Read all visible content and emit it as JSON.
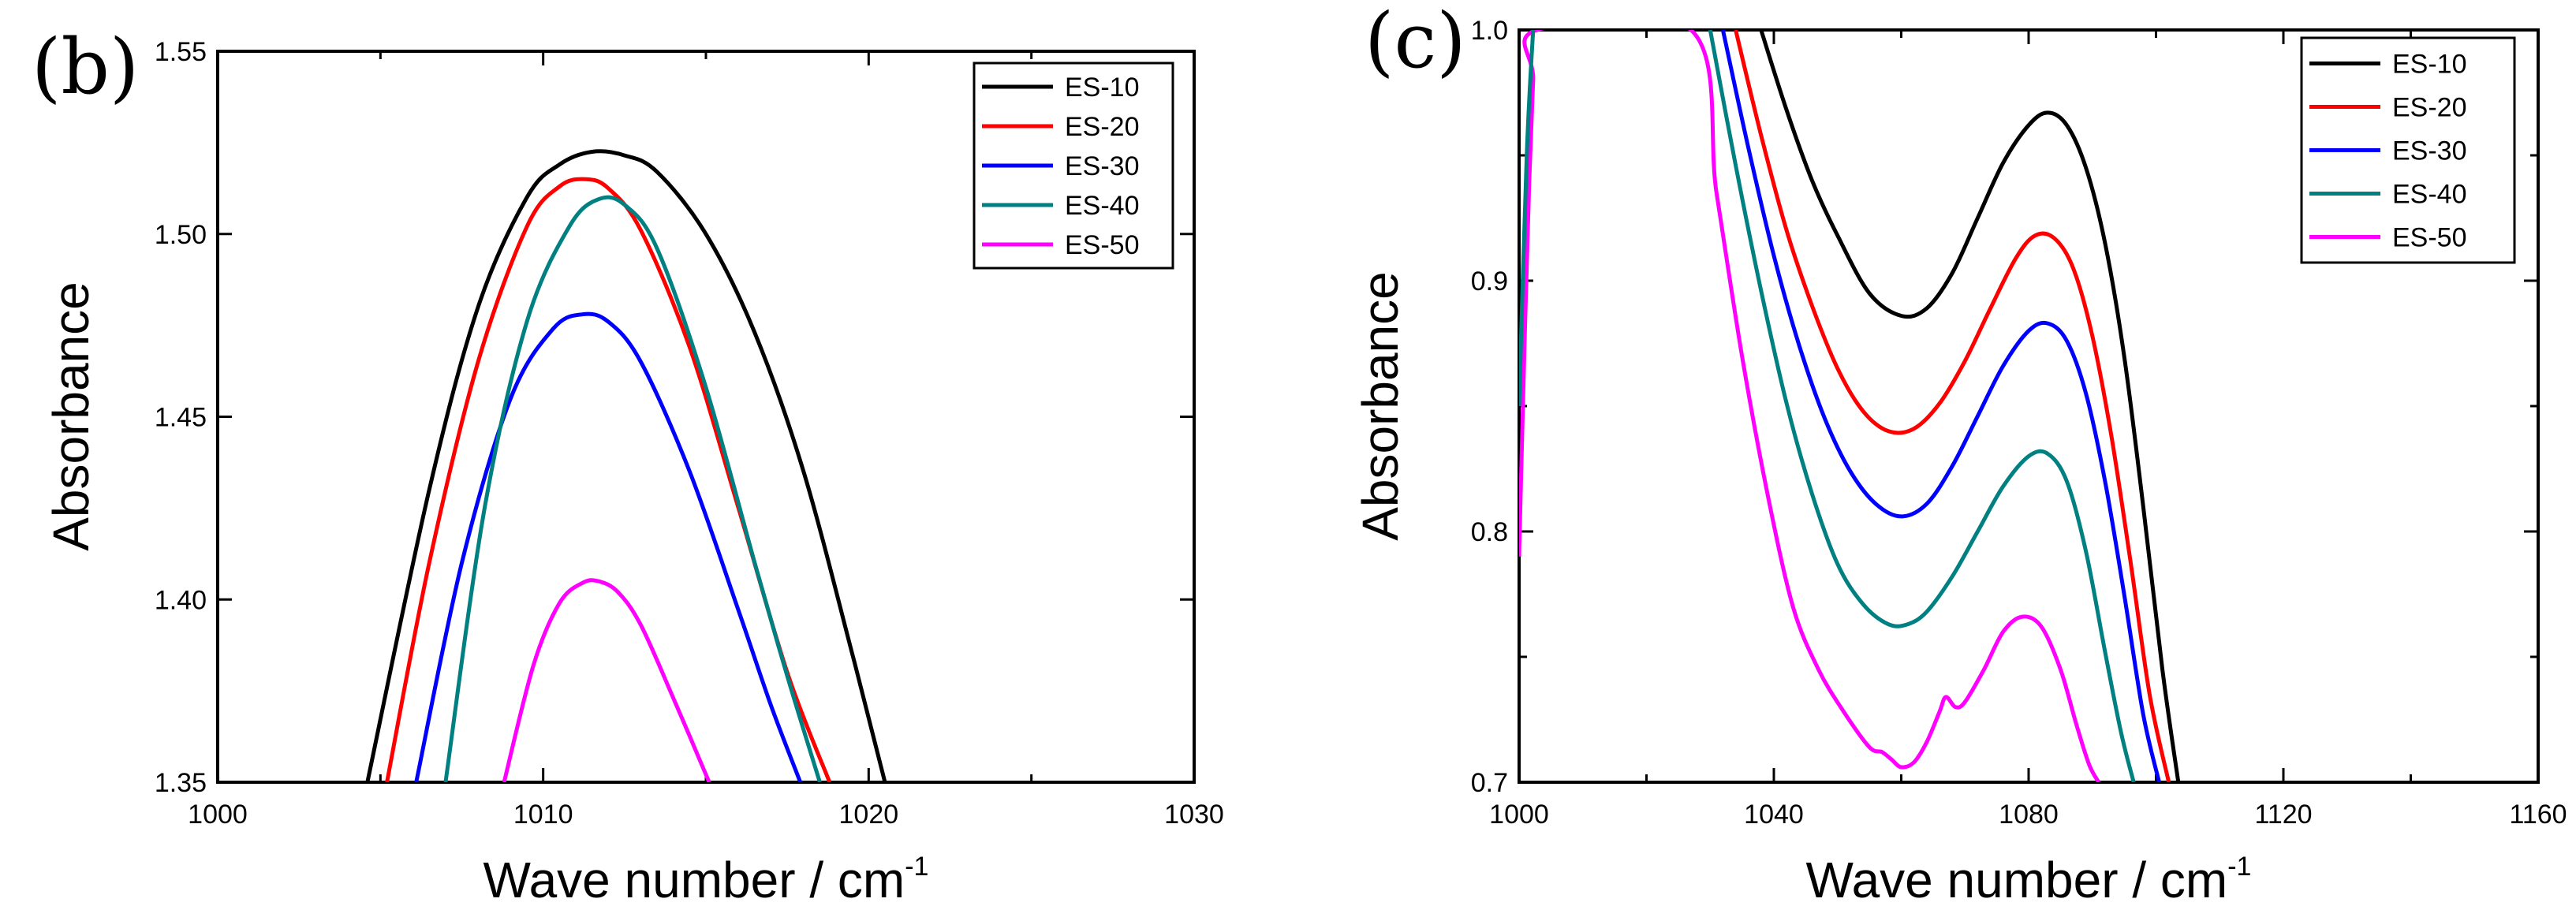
{
  "chart_data": [
    {
      "type": "line",
      "panel": "(b)",
      "xlabel": "Wave number / cm",
      "xlabel_sup": "-1",
      "ylabel": "Absorbance",
      "xlim": [
        1000,
        1030
      ],
      "ylim": [
        1.35,
        1.55
      ],
      "xticks": [
        1000,
        1010,
        1020,
        1030
      ],
      "xtick_labels": [
        "1000",
        "1010",
        "1020",
        "1030"
      ],
      "yticks": [
        1.35,
        1.4,
        1.45,
        1.5,
        1.55
      ],
      "ytick_labels": [
        "1.35",
        "1.40",
        "1.45",
        "1.50",
        "1.55"
      ],
      "legend_position": "top-right",
      "series": [
        {
          "name": "ES-10",
          "color": "#000000",
          "x": [
            1004.6,
            1006.5,
            1008.0,
            1009.5,
            1010.5,
            1011.5,
            1012.5,
            1013.5,
            1015.0,
            1016.5,
            1018.0,
            1019.5,
            1020.5
          ],
          "y": [
            1.35,
            1.43,
            1.48,
            1.51,
            1.519,
            1.5225,
            1.5215,
            1.517,
            1.5,
            1.473,
            1.435,
            1.385,
            1.35
          ]
        },
        {
          "name": "ES-20",
          "color": "#ff0000",
          "x": [
            1005.2,
            1006.5,
            1008.0,
            1009.5,
            1010.5,
            1011.3,
            1012.0,
            1013.0,
            1014.5,
            1016.0,
            1017.5,
            1018.8
          ],
          "y": [
            1.35,
            1.41,
            1.465,
            1.502,
            1.513,
            1.515,
            1.5125,
            1.501,
            1.469,
            1.425,
            1.38,
            1.35
          ]
        },
        {
          "name": "ES-30",
          "color": "#0000ff",
          "x": [
            1006.1,
            1007.5,
            1009.0,
            1010.3,
            1011.2,
            1012.0,
            1013.0,
            1014.5,
            1016.0,
            1017.0,
            1017.9
          ],
          "y": [
            1.35,
            1.41,
            1.455,
            1.474,
            1.478,
            1.476,
            1.465,
            1.435,
            1.397,
            1.371,
            1.35
          ]
        },
        {
          "name": "ES-40",
          "color": "#008080",
          "x": [
            1007.0,
            1008.2,
            1009.5,
            1010.8,
            1011.7,
            1012.5,
            1013.5,
            1015.0,
            1016.5,
            1017.5,
            1018.5
          ],
          "y": [
            1.35,
            1.425,
            1.476,
            1.502,
            1.5095,
            1.508,
            1.496,
            1.458,
            1.41,
            1.379,
            1.35
          ]
        },
        {
          "name": "ES-50",
          "color": "#ff00ff",
          "x": [
            1008.8,
            1009.7,
            1010.5,
            1011.2,
            1011.7,
            1012.3,
            1013.0,
            1014.0,
            1015.1
          ],
          "y": [
            1.35,
            1.382,
            1.399,
            1.4045,
            1.405,
            1.402,
            1.393,
            1.373,
            1.35
          ]
        }
      ]
    },
    {
      "type": "line",
      "panel": "(c)",
      "xlabel": "Wave number / cm",
      "xlabel_sup": "-1",
      "ylabel": "Absorbance",
      "xlim": [
        1000,
        1160
      ],
      "ylim": [
        0.7,
        1.0
      ],
      "xticks": [
        1000,
        1040,
        1080,
        1120,
        1160
      ],
      "xtick_labels": [
        "1000",
        "1040",
        "1080",
        "1120",
        "1160"
      ],
      "yticks": [
        0.7,
        0.8,
        0.9,
        1.0
      ],
      "ytick_labels": [
        "0.7",
        "0.8",
        "0.9",
        "1.0"
      ],
      "legend_position": "top-right",
      "series": [
        {
          "name": "ES-10",
          "color": "#000000",
          "x": [
            1038,
            1042,
            1046,
            1050,
            1055,
            1060,
            1064,
            1068,
            1072,
            1076,
            1080,
            1083,
            1086,
            1089,
            1092,
            1095,
            1098,
            1101,
            1103.5
          ],
          "y": [
            1.0,
            0.968,
            0.94,
            0.918,
            0.895,
            0.886,
            0.889,
            0.903,
            0.925,
            0.947,
            0.962,
            0.967,
            0.962,
            0.945,
            0.915,
            0.87,
            0.81,
            0.745,
            0.7
          ]
        },
        {
          "name": "ES-20",
          "color": "#ff0000",
          "x": [
            1034,
            1038,
            1042,
            1046,
            1050,
            1054,
            1058,
            1062,
            1066,
            1070,
            1074,
            1078,
            1081,
            1084,
            1087,
            1090,
            1093,
            1096,
            1099,
            1102
          ],
          "y": [
            1.0,
            0.958,
            0.92,
            0.89,
            0.865,
            0.848,
            0.84,
            0.841,
            0.851,
            0.868,
            0.889,
            0.909,
            0.918,
            0.917,
            0.905,
            0.878,
            0.838,
            0.788,
            0.735,
            0.7
          ]
        },
        {
          "name": "ES-30",
          "color": "#0000ff",
          "x": [
            1032,
            1036,
            1040,
            1044,
            1048,
            1052,
            1056,
            1060,
            1064,
            1068,
            1072,
            1076,
            1080,
            1083,
            1086,
            1089,
            1092,
            1095,
            1098,
            1100.5
          ],
          "y": [
            1.0,
            0.953,
            0.91,
            0.874,
            0.845,
            0.824,
            0.811,
            0.806,
            0.811,
            0.826,
            0.846,
            0.866,
            0.88,
            0.883,
            0.876,
            0.855,
            0.82,
            0.775,
            0.727,
            0.7
          ]
        },
        {
          "name": "ES-40",
          "color": "#008080",
          "x": [
            1030,
            1034,
            1038,
            1042,
            1046,
            1050,
            1054,
            1058,
            1061,
            1064,
            1068,
            1072,
            1076,
            1080,
            1083,
            1086,
            1089,
            1092,
            1094.5,
            1096.5
          ],
          "y": [
            1.0,
            0.946,
            0.896,
            0.851,
            0.815,
            0.787,
            0.771,
            0.763,
            0.763,
            0.768,
            0.782,
            0.8,
            0.818,
            0.83,
            0.831,
            0.82,
            0.792,
            0.752,
            0.72,
            0.7
          ]
        },
        {
          "name": "ES-50",
          "color": "#ff00ff",
          "x": [
            1000,
            1000.8,
            1001.6,
            1002.2,
            1002.8,
            1027,
            1031,
            1035,
            1039,
            1043,
            1047,
            1051,
            1055,
            1057,
            1058.5,
            1060,
            1062,
            1064,
            1066,
            1067,
            1068.5,
            1070,
            1073,
            1076,
            1079,
            1082,
            1085,
            1087.5,
            1089.5,
            1091
          ],
          "y": [
            0.79,
            0.87,
            0.94,
            0.98,
            1.0,
            1.0,
            0.935,
            0.87,
            0.815,
            0.77,
            0.745,
            0.728,
            0.714,
            0.712,
            0.709,
            0.706,
            0.708,
            0.716,
            0.728,
            0.734,
            0.73,
            0.732,
            0.745,
            0.76,
            0.766,
            0.762,
            0.745,
            0.723,
            0.707,
            0.7
          ]
        },
        {
          "name": "ES-40-edge",
          "color": "#008080",
          "legend": false,
          "x": [
            1000,
            1001.2,
            1002.2
          ],
          "y": [
            0.85,
            0.95,
            1.0
          ]
        }
      ]
    }
  ]
}
